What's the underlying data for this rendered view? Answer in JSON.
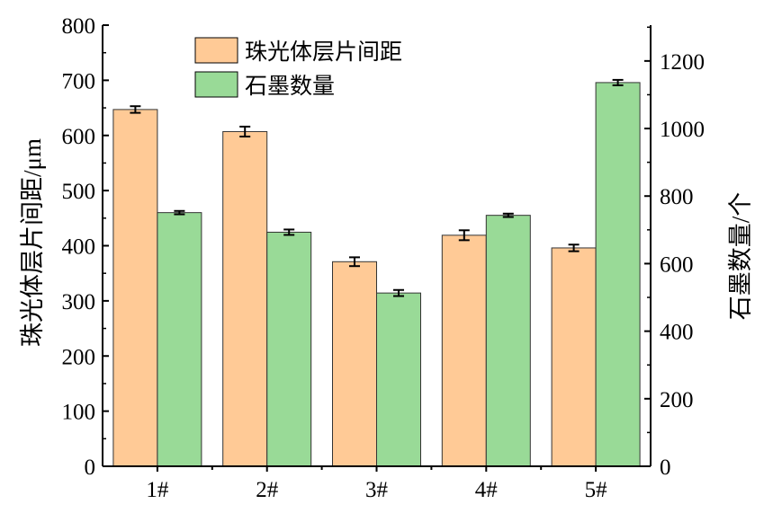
{
  "chart_data": {
    "type": "bar",
    "categories": [
      "1#",
      "2#",
      "3#",
      "4#",
      "5#"
    ],
    "ylabel_left": "珠光体层片间距/μm",
    "ylabel_right": "石墨数量/个",
    "ylim_left": [
      0,
      800
    ],
    "ylim_right": [
      0,
      1306
    ],
    "yticks_left": [
      "0",
      "100",
      "200",
      "300",
      "400",
      "500",
      "600",
      "700",
      "800"
    ],
    "yticks_right": [
      "0",
      "200",
      "400",
      "600",
      "800",
      "1000",
      "1200"
    ],
    "legend_position": "top-left",
    "grid": false,
    "series": [
      {
        "name": "珠光体层片间距",
        "axis": "left",
        "color": "#FFCA96",
        "values": [
          647,
          607,
          371,
          419,
          396
        ],
        "errors": [
          6,
          9,
          8,
          9,
          6
        ]
      },
      {
        "name": "石墨数量",
        "axis": "right",
        "color": "#99DA97",
        "values": [
          751,
          693,
          513,
          743,
          1136
        ],
        "errors": [
          5,
          8,
          9,
          5,
          8
        ]
      }
    ]
  }
}
